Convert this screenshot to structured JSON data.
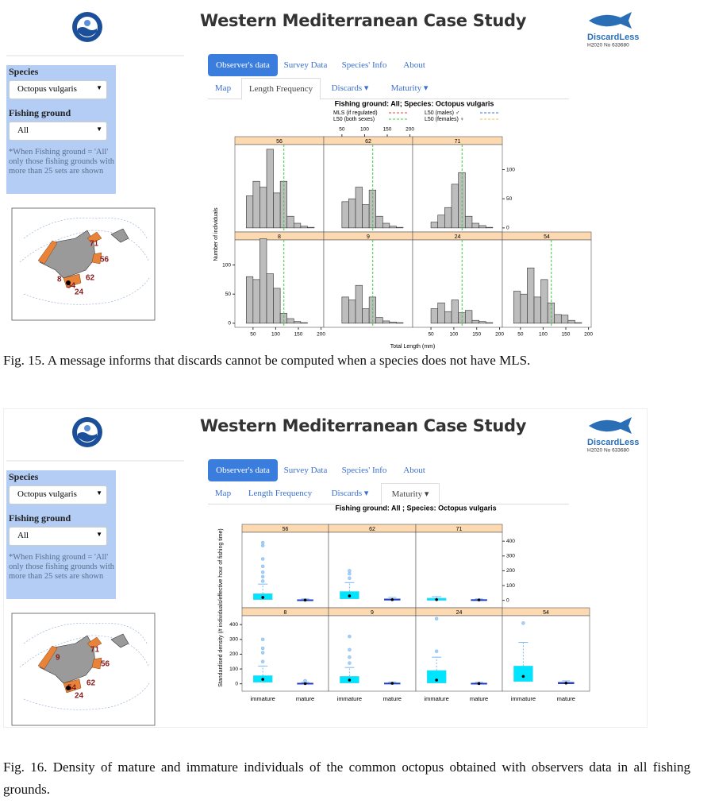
{
  "figures": [
    {
      "header": {
        "title": "Western Mediterranean Case Study",
        "brand": "DiscardLess",
        "grant": "H2020 No 633680"
      },
      "sidebar": {
        "species_label": "Species",
        "species_value": "Octopus vulgaris",
        "ground_label": "Fishing ground",
        "ground_value": "All",
        "note": "*When Fishing ground = 'All' only those fishing grounds with more than 25 sets are shown"
      },
      "map_labels": [
        "71",
        "56",
        "8",
        "62",
        "54",
        "24"
      ],
      "tabs": [
        "Observer's data",
        "Survey Data",
        "Species' Info",
        "About"
      ],
      "active_tab": 0,
      "subtabs": [
        "Map",
        "Length Frequency",
        "Discards ▾",
        "Maturity ▾"
      ],
      "active_subtab": 1,
      "chart_data": {
        "type": "histogram",
        "title": "Fishing ground: All; Species: Octopus vulgaris",
        "legend": [
          {
            "name": "MLS (if regulated)",
            "color": "#e8453c"
          },
          {
            "name": "L50 (both sexes)",
            "color": "#3ccf3c",
            "value": 118
          },
          {
            "name": "L50 (males) ♂",
            "color": "#4a6ee0"
          },
          {
            "name": "L50 (females) ♀",
            "color": "#e8c33c"
          }
        ],
        "x_label": "Total Length (mm)",
        "y_label": "Number of individuals",
        "bins": [
          35,
          50,
          65,
          80,
          95,
          110,
          125,
          140,
          155,
          170,
          185,
          200
        ],
        "panels": [
          {
            "name": "56",
            "counts": [
              55,
              80,
              70,
              135,
              60,
              80,
              20,
              8,
              3,
              1,
              0
            ]
          },
          {
            "name": "62",
            "counts": [
              0,
              45,
              50,
              70,
              40,
              65,
              20,
              8,
              3,
              1,
              0
            ]
          },
          {
            "name": "71",
            "counts": [
              0,
              10,
              22,
              35,
              75,
              95,
              20,
              8,
              4,
              1,
              0
            ]
          },
          {
            "name": "8",
            "counts": [
              80,
              75,
              145,
              85,
              60,
              17,
              8,
              3,
              1,
              0,
              0
            ]
          },
          {
            "name": "9",
            "counts": [
              0,
              45,
              40,
              65,
              25,
              45,
              10,
              4,
              2,
              1,
              0
            ]
          },
          {
            "name": "24",
            "counts": [
              0,
              25,
              35,
              20,
              40,
              18,
              22,
              5,
              3,
              1,
              0
            ]
          },
          {
            "name": "54",
            "counts": [
              55,
              50,
              95,
              45,
              75,
              35,
              15,
              14,
              5,
              1,
              0
            ]
          }
        ],
        "xlim": [
          10,
          206
        ],
        "xticks": [
          50,
          100,
          150,
          200
        ],
        "ylim": [
          -7,
          143
        ],
        "yticks": [
          0,
          50,
          100
        ]
      },
      "caption": "Fig. 15. A message informs that discards cannot be computed when a species does not have MLS."
    },
    {
      "header": {
        "title": "Western Mediterranean Case Study",
        "brand": "DiscardLess",
        "grant": "H2020 No 633680"
      },
      "sidebar": {
        "species_label": "Species",
        "species_value": "Octopus vulgaris",
        "ground_label": "Fishing ground",
        "ground_value": "All",
        "note": "*When Fishing ground = 'All' only those fishing grounds with more than 25 sets are shown"
      },
      "map_labels": [
        "9",
        "71",
        "56",
        "62",
        "54",
        "24"
      ],
      "tabs": [
        "Observer's data",
        "Survey Data",
        "Species' Info",
        "About"
      ],
      "active_tab": 0,
      "subtabs": [
        "Map",
        "Length Frequency",
        "Discards ▾",
        "Maturity ▾"
      ],
      "active_subtab": 3,
      "chart_data": {
        "type": "boxplot",
        "title": "Fishing ground: All ; Species: Octopus vulgaris",
        "y_label": "Standardised density (# individuals/effective hour of fishing time)",
        "categories": [
          "immature",
          "mature"
        ],
        "box_color": "#00e5ff",
        "panels": [
          {
            "name": "56",
            "boxes": [
              {
                "q1": 5,
                "median": 20,
                "q3": 45,
                "whisker": 110,
                "outliers": [
                  130,
                  160,
                  190,
                  230,
                  280,
                  370,
                  390
                ]
              },
              {
                "q1": 0,
                "median": 2,
                "q3": 5,
                "whisker": 10,
                "outliers": []
              }
            ]
          },
          {
            "name": "62",
            "boxes": [
              {
                "q1": 10,
                "median": 30,
                "q3": 60,
                "whisker": 120,
                "outliers": [
                  150,
                  180,
                  200
                ]
              },
              {
                "q1": 1,
                "median": 5,
                "q3": 10,
                "whisker": 20,
                "outliers": []
              }
            ]
          },
          {
            "name": "71",
            "boxes": [
              {
                "q1": 0,
                "median": 5,
                "q3": 15,
                "whisker": 25,
                "outliers": []
              },
              {
                "q1": 0,
                "median": 3,
                "q3": 6,
                "whisker": 10,
                "outliers": []
              }
            ]
          },
          {
            "name": "8",
            "boxes": [
              {
                "q1": 10,
                "median": 30,
                "q3": 55,
                "whisker": 120,
                "outliers": [
                  150,
                  210,
                  240,
                  300
                ]
              },
              {
                "q1": 0,
                "median": 2,
                "q3": 5,
                "whisker": 10,
                "outliers": [
                  20
                ]
              }
            ]
          },
          {
            "name": "9",
            "boxes": [
              {
                "q1": 5,
                "median": 25,
                "q3": 50,
                "whisker": 110,
                "outliers": [
                  140,
                  180,
                  230,
                  320
                ]
              },
              {
                "q1": 0,
                "median": 3,
                "q3": 6,
                "whisker": 12,
                "outliers": []
              }
            ]
          },
          {
            "name": "24",
            "boxes": [
              {
                "q1": 5,
                "median": 25,
                "q3": 90,
                "whisker": 180,
                "outliers": [
                  220,
                  440
                ]
              },
              {
                "q1": 0,
                "median": 2,
                "q3": 5,
                "whisker": 10,
                "outliers": []
              }
            ]
          },
          {
            "name": "54",
            "boxes": [
              {
                "q1": 15,
                "median": 50,
                "q3": 120,
                "whisker": 280,
                "outliers": [
                  410
                ]
              },
              {
                "q1": 0,
                "median": 5,
                "q3": 10,
                "whisker": 20,
                "outliers": []
              }
            ]
          }
        ],
        "ylim": [
          -50,
          460
        ],
        "yticks": [
          0,
          100,
          200,
          300,
          400
        ]
      },
      "caption": "Fig. 16. Density of mature and immature individuals of the common octopus obtained with observers data in all fishing grounds."
    }
  ]
}
